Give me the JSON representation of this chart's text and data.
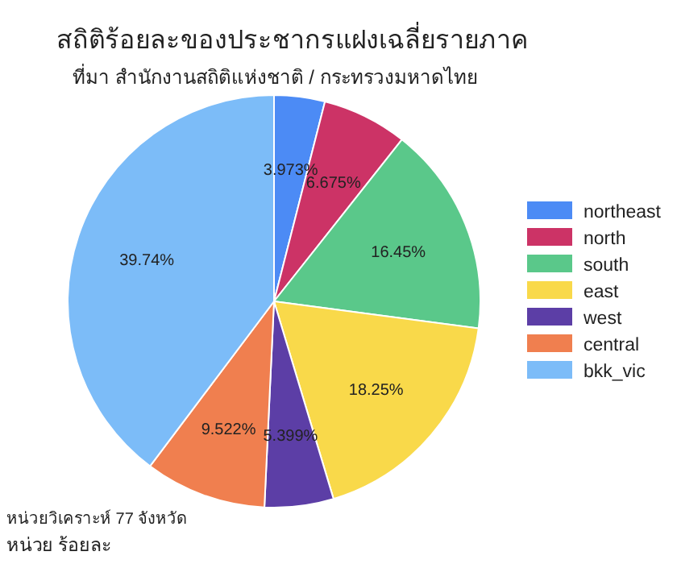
{
  "chart_data": {
    "type": "pie",
    "title": "สถิติร้อยละของประชากรแฝงเฉลี่ยรายภาค",
    "subtitle": "ที่มา สำนักงานสถิติแห่งชาติ / กระทรวงมหาดไทย",
    "categories": [
      "northeast",
      "north",
      "south",
      "east",
      "west",
      "central",
      "bkk_vic"
    ],
    "values": [
      3.973,
      6.675,
      16.45,
      18.25,
      5.399,
      9.522,
      39.74
    ],
    "colors": [
      "#4c8bf5",
      "#cc3366",
      "#5ac88a",
      "#f9d94a",
      "#5c3ea6",
      "#f07f4f",
      "#7cbcf8"
    ],
    "value_labels": [
      "3.973%",
      "6.675%",
      "16.45%",
      "18.25%",
      "5.399%",
      "9.522%",
      "39.74%"
    ],
    "legend": "right",
    "annotations": [
      "หน่วยวิเคราะห์ 77 จังหวัด",
      "หน่วย ร้อยละ"
    ]
  }
}
